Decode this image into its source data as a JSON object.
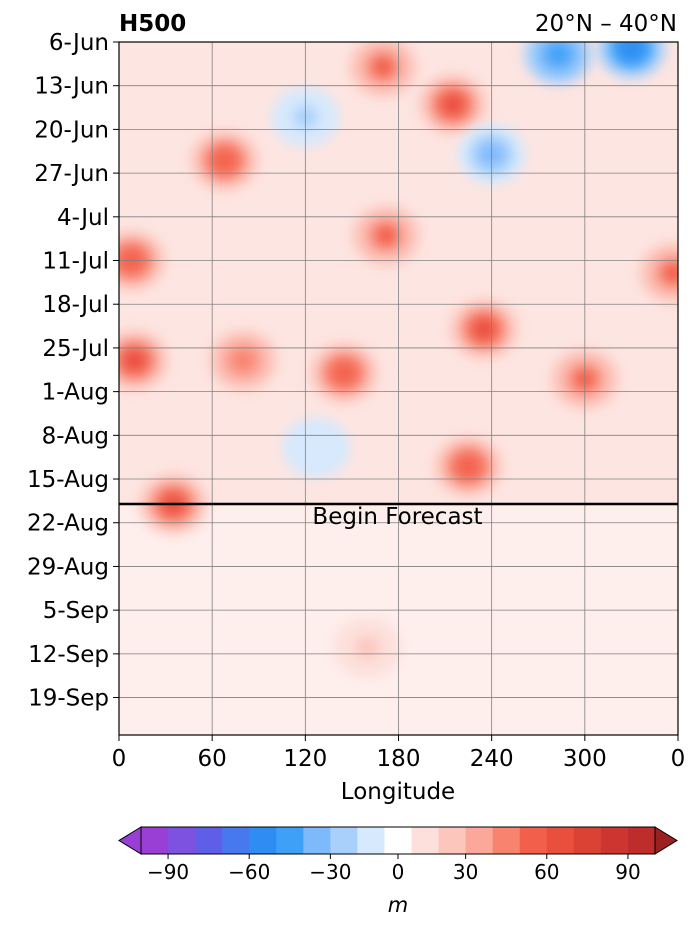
{
  "chart_data": {
    "type": "heatmap",
    "title_left": "H500",
    "title_right": "20°N – 40°N",
    "xlabel": "Longitude",
    "ylabel": "",
    "x_ticks": [
      "0",
      "60",
      "120",
      "180",
      "240",
      "300",
      "0"
    ],
    "x_tick_values": [
      0,
      60,
      120,
      180,
      240,
      300,
      360
    ],
    "xlim": [
      0,
      360
    ],
    "y_ticks": [
      "6-Jun",
      "13-Jun",
      "20-Jun",
      "27-Jun",
      "4-Jul",
      "11-Jul",
      "18-Jul",
      "25-Jul",
      "1-Aug",
      "8-Aug",
      "15-Aug",
      "22-Aug",
      "29-Aug",
      "5-Sep",
      "12-Sep",
      "19-Sep"
    ],
    "y_range": [
      "6-Jun",
      "25-Sep"
    ],
    "forecast_date": "19-Aug",
    "forecast_label": "Begin Forecast",
    "grid": true,
    "colorbar": {
      "label": "m",
      "ticks": [
        "−90",
        "−60",
        "−30",
        "0",
        "30",
        "60",
        "90"
      ],
      "tick_values": [
        -90,
        -60,
        -30,
        0,
        30,
        60,
        90
      ],
      "levels": [
        -100,
        -90,
        -80,
        -70,
        -60,
        -50,
        -40,
        -30,
        -20,
        -10,
        10,
        20,
        30,
        40,
        50,
        60,
        70,
        80,
        90,
        100
      ],
      "colors": [
        "#9a3fd6",
        "#7d52e0",
        "#5f5ee8",
        "#4878ef",
        "#2e8cf2",
        "#3fa0f8",
        "#7db9fb",
        "#a9d0fb",
        "#d7e9fc",
        "#ffffff",
        "#fde0dc",
        "#fcc6bd",
        "#fba79a",
        "#f8836f",
        "#f2604c",
        "#ea4e3c",
        "#dc4234",
        "#cd3630",
        "#be2c2c"
      ],
      "extend": "both"
    },
    "anomaly_centers": [
      {
        "lon": 8,
        "date": "11-Jul",
        "value": 55
      },
      {
        "lon": 10,
        "date": "27-Jul",
        "value": 60
      },
      {
        "lon": 35,
        "date": "19-Aug",
        "value": 60
      },
      {
        "lon": 68,
        "date": "25-Jun",
        "value": 55
      },
      {
        "lon": 80,
        "date": "27-Jul",
        "value": 45
      },
      {
        "lon": 145,
        "date": "29-Jul",
        "value": 55
      },
      {
        "lon": 170,
        "date": "10-Jun",
        "value": 50
      },
      {
        "lon": 172,
        "date": "7-Jul",
        "value": 50
      },
      {
        "lon": 215,
        "date": "16-Jun",
        "value": 60
      },
      {
        "lon": 235,
        "date": "22-Jul",
        "value": 65
      },
      {
        "lon": 225,
        "date": "13-Aug",
        "value": 55
      },
      {
        "lon": 300,
        "date": "30-Jul",
        "value": 50
      },
      {
        "lon": 357,
        "date": "13-Jul",
        "value": 50
      },
      {
        "lon": 160,
        "date": "11-Sep",
        "value": 20
      },
      {
        "lon": 120,
        "date": "18-Jun",
        "value": -25
      },
      {
        "lon": 240,
        "date": "24-Jun",
        "value": -35
      },
      {
        "lon": 283,
        "date": "8-Jun",
        "value": -50
      },
      {
        "lon": 330,
        "date": "7-Jun",
        "value": -60
      },
      {
        "lon": 127,
        "date": "10-Aug",
        "value": -20
      }
    ]
  }
}
